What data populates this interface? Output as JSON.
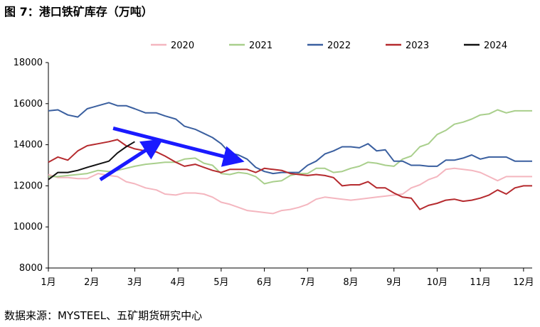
{
  "figure_title": "图 7：港口铁矿库存（万吨）",
  "source": "数据来源：MYSTEEL、五矿期货研究中心",
  "chart_data": {
    "type": "line",
    "title": "",
    "xlabel": "",
    "ylabel": "",
    "x_ticks": [
      "1月",
      "2月",
      "3月",
      "4月",
      "5月",
      "6月",
      "7月",
      "8月",
      "9月",
      "10月",
      "11月",
      "12月"
    ],
    "y_ticks": [
      "8000",
      "10000",
      "12000",
      "14000",
      "16000",
      "18000"
    ],
    "ylim": [
      8000,
      18000
    ],
    "xlim": [
      1,
      12.2
    ],
    "legend_position": "top",
    "grid": false,
    "series": [
      {
        "name": "2020",
        "color": "#f4b6bf",
        "x": [
          1,
          1.22,
          1.45,
          1.68,
          1.9,
          2.15,
          2.4,
          2.6,
          2.8,
          3.0,
          3.25,
          3.5,
          3.7,
          3.95,
          4.15,
          4.4,
          4.6,
          4.8,
          5.0,
          5.2,
          5.4,
          5.6,
          5.8,
          6.0,
          6.2,
          6.4,
          6.6,
          6.8,
          7.0,
          7.2,
          7.4,
          7.6,
          7.8,
          8.0,
          8.2,
          8.4,
          8.6,
          8.8,
          9.0,
          9.2,
          9.4,
          9.6,
          9.8,
          10.0,
          10.2,
          10.4,
          10.6,
          10.8,
          11.0,
          11.2,
          11.4,
          11.6,
          11.8,
          12.0,
          12.2
        ],
        "y": [
          12550,
          12400,
          12400,
          12350,
          12350,
          12600,
          12500,
          12450,
          12200,
          12100,
          11900,
          11800,
          11600,
          11550,
          11650,
          11650,
          11600,
          11450,
          11200,
          11100,
          10950,
          10800,
          10750,
          10700,
          10650,
          10800,
          10850,
          10950,
          11100,
          11350,
          11450,
          11400,
          11350,
          11300,
          11350,
          11400,
          11450,
          11500,
          11550,
          11600,
          11900,
          12050,
          12300,
          12450,
          12800,
          12850,
          12800,
          12750,
          12650,
          12450,
          12250,
          12450,
          12450,
          12450,
          12450
        ]
      },
      {
        "name": "2021",
        "color": "#a9cf8c",
        "x": [
          1,
          1.22,
          1.45,
          1.68,
          1.9,
          2.15,
          2.4,
          2.6,
          2.8,
          3.0,
          3.25,
          3.5,
          3.7,
          3.95,
          4.15,
          4.4,
          4.6,
          4.8,
          5.0,
          5.2,
          5.4,
          5.6,
          5.8,
          6.0,
          6.2,
          6.4,
          6.6,
          6.8,
          7.0,
          7.2,
          7.4,
          7.6,
          7.8,
          8.0,
          8.2,
          8.4,
          8.6,
          8.8,
          9.0,
          9.2,
          9.4,
          9.6,
          9.8,
          10.0,
          10.2,
          10.4,
          10.6,
          10.8,
          11.0,
          11.2,
          11.4,
          11.6,
          11.8,
          12.0,
          12.2
        ],
        "y": [
          12450,
          12450,
          12500,
          12550,
          12600,
          12750,
          12700,
          12750,
          12850,
          12950,
          13050,
          13100,
          13150,
          13150,
          13300,
          13350,
          13100,
          13000,
          12600,
          12550,
          12650,
          12600,
          12450,
          12100,
          12200,
          12250,
          12500,
          12600,
          12600,
          12850,
          12850,
          12650,
          12700,
          12850,
          12950,
          13150,
          13100,
          13000,
          12950,
          13300,
          13450,
          13900,
          14050,
          14500,
          14700,
          15000,
          15100,
          15250,
          15450,
          15500,
          15700,
          15550,
          15650,
          15650,
          15650
        ]
      },
      {
        "name": "2022",
        "color": "#3a5f9f",
        "x": [
          1,
          1.22,
          1.45,
          1.68,
          1.9,
          2.15,
          2.4,
          2.6,
          2.8,
          3.0,
          3.25,
          3.5,
          3.7,
          3.95,
          4.15,
          4.4,
          4.6,
          4.8,
          5.0,
          5.2,
          5.4,
          5.6,
          5.8,
          6.0,
          6.2,
          6.4,
          6.6,
          6.8,
          7.0,
          7.2,
          7.4,
          7.6,
          7.8,
          8.0,
          8.2,
          8.4,
          8.6,
          8.8,
          9.0,
          9.2,
          9.4,
          9.6,
          9.8,
          10.0,
          10.2,
          10.4,
          10.6,
          10.8,
          11.0,
          11.2,
          11.4,
          11.6,
          11.8,
          12.0,
          12.2
        ],
        "y": [
          15650,
          15700,
          15450,
          15350,
          15750,
          15900,
          16050,
          15900,
          15900,
          15750,
          15550,
          15550,
          15400,
          15250,
          14900,
          14750,
          14550,
          14350,
          14050,
          13600,
          13500,
          13300,
          12900,
          12700,
          12600,
          12650,
          12650,
          12650,
          13000,
          13200,
          13550,
          13700,
          13900,
          13900,
          13850,
          14050,
          13700,
          13750,
          13200,
          13200,
          13000,
          13000,
          12950,
          12950,
          13250,
          13250,
          13350,
          13500,
          13300,
          13400,
          13400,
          13400,
          13200,
          13200,
          13200
        ]
      },
      {
        "name": "2023",
        "color": "#b52a2e",
        "x": [
          1,
          1.22,
          1.45,
          1.68,
          1.9,
          2.15,
          2.4,
          2.6,
          2.8,
          3.0,
          3.25,
          3.5,
          3.7,
          3.95,
          4.15,
          4.4,
          4.6,
          4.8,
          5.0,
          5.2,
          5.4,
          5.6,
          5.8,
          6.0,
          6.2,
          6.4,
          6.6,
          6.8,
          7.0,
          7.2,
          7.4,
          7.6,
          7.8,
          8.0,
          8.2,
          8.4,
          8.6,
          8.8,
          9.0,
          9.2,
          9.4,
          9.6,
          9.8,
          10.0,
          10.2,
          10.4,
          10.6,
          10.8,
          11.0,
          11.2,
          11.4,
          11.6,
          11.8,
          12.0,
          12.2
        ],
        "y": [
          13150,
          13400,
          13250,
          13700,
          13950,
          14050,
          14150,
          14250,
          13950,
          13800,
          13700,
          13650,
          13450,
          13150,
          12950,
          13050,
          12900,
          12750,
          12650,
          12800,
          12800,
          12800,
          12650,
          12850,
          12800,
          12750,
          12600,
          12550,
          12500,
          12550,
          12500,
          12400,
          12000,
          12050,
          12050,
          12200,
          11900,
          11900,
          11650,
          11450,
          11400,
          10850,
          11050,
          11150,
          11300,
          11350,
          11250,
          11300,
          11400,
          11550,
          11800,
          11600,
          11900,
          12000,
          12000
        ]
      },
      {
        "name": "2024",
        "color": "#111111",
        "x": [
          1,
          1.22,
          1.45,
          1.68,
          1.9,
          2.15,
          2.4,
          2.6,
          2.8,
          3.0
        ],
        "y": [
          12300,
          12650,
          12650,
          12750,
          12900,
          13050,
          13200,
          13600,
          13900,
          14150
        ]
      }
    ]
  },
  "annotations": {
    "arrow_color": "#1a1aff",
    "arrows": [
      {
        "from": [
          2.2,
          12300
        ],
        "to": [
          3.45,
          14000
        ]
      },
      {
        "from": [
          2.5,
          14800
        ],
        "to": [
          5.3,
          13300
        ]
      }
    ]
  }
}
